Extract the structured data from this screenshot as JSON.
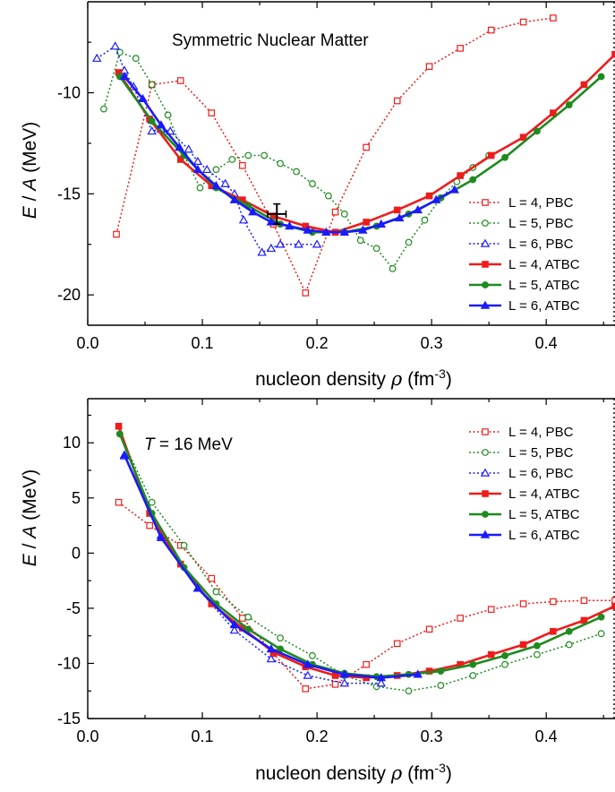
{
  "chart_data": [
    {
      "type": "line",
      "title": "",
      "annotation": "Symmetric Nuclear Matter",
      "xlabel": "nucleon density ρ (fm⁻³)",
      "ylabel": "E / A (MeV)",
      "xlim": [
        0.0,
        0.46
      ],
      "ylim": [
        -21.5,
        -5.5
      ],
      "xticks": [
        0.0,
        0.1,
        0.2,
        0.3,
        0.4
      ],
      "xtick_labels": [
        "0.0",
        "0.1",
        "0.2",
        "0.3",
        "0.4"
      ],
      "yticks": [
        -10,
        -15,
        -20
      ],
      "ytick_labels": [
        "-10",
        "-15",
        "-20"
      ],
      "grid": false,
      "legend_position": "bottom-right",
      "series": [
        {
          "name": "L = 4, PBC",
          "color": "#ee1c1c",
          "style": "dotted",
          "marker": "square-open",
          "x": [
            0.025,
            0.056,
            0.081,
            0.108,
            0.135,
            0.162,
            0.19,
            0.216,
            0.243,
            0.27,
            0.298,
            0.325,
            0.352,
            0.38,
            0.406
          ],
          "y": [
            -17.0,
            -9.6,
            -9.4,
            -11.0,
            -13.6,
            -16.5,
            -19.9,
            -15.9,
            -12.7,
            -10.4,
            -8.7,
            -7.8,
            -6.9,
            -6.5,
            -6.3
          ]
        },
        {
          "name": "L = 5, PBC",
          "color": "#1f8a1f",
          "style": "dotted",
          "marker": "circle-open",
          "x": [
            0.014,
            0.028,
            0.042,
            0.056,
            0.07,
            0.084,
            0.098,
            0.112,
            0.126,
            0.14,
            0.154,
            0.168,
            0.182,
            0.196,
            0.21,
            0.224,
            0.238,
            0.252,
            0.266,
            0.28,
            0.294,
            0.308,
            0.322,
            0.336,
            0.35
          ],
          "y": [
            -10.8,
            -8.0,
            -8.3,
            -9.6,
            -11.1,
            -13.1,
            -14.7,
            -13.8,
            -13.3,
            -13.1,
            -13.1,
            -13.5,
            -13.9,
            -14.5,
            -15.1,
            -16.0,
            -17.3,
            -17.7,
            -18.7,
            -17.4,
            -16.3,
            -15.2,
            -14.4,
            -13.7,
            -13.1
          ]
        },
        {
          "name": "L = 6, PBC",
          "color": "#1a1aff",
          "style": "dotted",
          "marker": "triangle-open",
          "x": [
            0.008,
            0.024,
            0.032,
            0.04,
            0.056,
            0.064,
            0.072,
            0.088,
            0.096,
            0.104,
            0.12,
            0.128,
            0.136,
            0.152,
            0.16,
            0.168,
            0.184,
            0.2
          ],
          "y": [
            -8.3,
            -7.7,
            -8.9,
            -9.7,
            -11.9,
            -11.8,
            -11.9,
            -12.8,
            -13.4,
            -13.8,
            -14.5,
            -15.0,
            -16.3,
            -17.9,
            -17.7,
            -17.5,
            -17.5,
            -17.5
          ]
        },
        {
          "name": "L = 4, ATBC",
          "color": "#ee1c1c",
          "style": "solid",
          "marker": "square-filled",
          "x": [
            0.027,
            0.054,
            0.081,
            0.108,
            0.135,
            0.162,
            0.19,
            0.216,
            0.243,
            0.27,
            0.298,
            0.325,
            0.352,
            0.38,
            0.406,
            0.433,
            0.46
          ],
          "y": [
            -9.0,
            -11.3,
            -13.3,
            -14.6,
            -15.3,
            -16.1,
            -16.6,
            -16.9,
            -16.4,
            -15.8,
            -15.1,
            -14.1,
            -13.1,
            -12.2,
            -11.0,
            -9.6,
            -8.1
          ]
        },
        {
          "name": "L = 5, ATBC",
          "color": "#1f8a1f",
          "style": "solid",
          "marker": "circle-filled",
          "x": [
            0.028,
            0.056,
            0.084,
            0.112,
            0.14,
            0.168,
            0.196,
            0.224,
            0.252,
            0.28,
            0.308,
            0.336,
            0.364,
            0.392,
            0.42,
            0.448
          ],
          "y": [
            -9.2,
            -11.4,
            -13.1,
            -14.7,
            -15.6,
            -16.5,
            -16.9,
            -16.9,
            -16.6,
            -16.0,
            -15.2,
            -14.3,
            -13.2,
            -11.9,
            -10.6,
            -9.2
          ]
        },
        {
          "name": "L = 6, ATBC",
          "color": "#1a1aff",
          "style": "solid",
          "marker": "triangle-filled",
          "x": [
            0.032,
            0.048,
            0.064,
            0.08,
            0.096,
            0.112,
            0.128,
            0.144,
            0.16,
            0.176,
            0.192,
            0.208,
            0.224,
            0.24,
            0.256,
            0.272,
            0.288,
            0.304,
            0.32
          ],
          "y": [
            -9.2,
            -10.3,
            -11.6,
            -12.7,
            -13.8,
            -14.6,
            -15.3,
            -15.9,
            -16.4,
            -16.6,
            -16.8,
            -16.9,
            -16.9,
            -16.8,
            -16.5,
            -16.2,
            -15.8,
            -15.3,
            -14.8
          ]
        }
      ],
      "error_point": {
        "x": 0.165,
        "y": -16.0,
        "xerr": 0.008,
        "yerr": 0.5
      }
    },
    {
      "type": "line",
      "title": "",
      "annotation_prefix": "T",
      "annotation": " = 16 MeV",
      "xlabel": "nucleon density ρ (fm⁻³)",
      "ylabel": "E / A (MeV)",
      "xlim": [
        0.0,
        0.46
      ],
      "ylim": [
        -15,
        14
      ],
      "xticks": [
        0.0,
        0.1,
        0.2,
        0.3,
        0.4
      ],
      "xtick_labels": [
        "0.0",
        "0.1",
        "0.2",
        "0.3",
        "0.4"
      ],
      "yticks": [
        10,
        5,
        0,
        -5,
        -10,
        -15
      ],
      "ytick_labels": [
        "10",
        "5",
        "0",
        "-5",
        "-10",
        "-15"
      ],
      "grid": false,
      "legend_position": "top-right",
      "series": [
        {
          "name": "L = 4, PBC",
          "color": "#ee1c1c",
          "style": "dotted",
          "marker": "square-open",
          "x": [
            0.027,
            0.054,
            0.081,
            0.108,
            0.135,
            0.162,
            0.19,
            0.216,
            0.243,
            0.27,
            0.298,
            0.325,
            0.352,
            0.38,
            0.406,
            0.433,
            0.46
          ],
          "y": [
            4.6,
            2.5,
            0.7,
            -2.3,
            -5.9,
            -9.1,
            -12.3,
            -11.9,
            -10.1,
            -8.2,
            -6.9,
            -5.9,
            -5.1,
            -4.6,
            -4.4,
            -4.3,
            -4.3
          ]
        },
        {
          "name": "L = 5, PBC",
          "color": "#1f8a1f",
          "style": "dotted",
          "marker": "circle-open",
          "x": [
            0.028,
            0.056,
            0.084,
            0.112,
            0.14,
            0.168,
            0.196,
            0.224,
            0.252,
            0.28,
            0.308,
            0.336,
            0.364,
            0.392,
            0.42,
            0.448
          ],
          "y": [
            10.8,
            4.6,
            0.7,
            -3.5,
            -5.8,
            -7.7,
            -9.3,
            -11.1,
            -12.1,
            -12.5,
            -12.0,
            -11.1,
            -10.1,
            -9.2,
            -8.3,
            -7.3
          ]
        },
        {
          "name": "L = 6, PBC",
          "color": "#1a1aff",
          "style": "dotted",
          "marker": "triangle-open",
          "x": [
            0.032,
            0.064,
            0.096,
            0.128,
            0.16,
            0.192,
            0.224,
            0.256
          ],
          "y": [
            8.8,
            1.6,
            -3.2,
            -7.0,
            -9.6,
            -11.1,
            -11.8,
            -11.8
          ]
        },
        {
          "name": "L = 4, ATBC",
          "color": "#ee1c1c",
          "style": "solid",
          "marker": "square-filled",
          "x": [
            0.027,
            0.054,
            0.081,
            0.108,
            0.135,
            0.162,
            0.19,
            0.216,
            0.243,
            0.27,
            0.298,
            0.325,
            0.352,
            0.38,
            0.406,
            0.433,
            0.46
          ],
          "y": [
            11.5,
            3.6,
            -1.0,
            -4.6,
            -6.8,
            -9.0,
            -10.3,
            -11.1,
            -11.3,
            -11.1,
            -10.7,
            -10.1,
            -9.2,
            -8.3,
            -7.1,
            -6.1,
            -4.8
          ]
        },
        {
          "name": "L = 5, ATBC",
          "color": "#1f8a1f",
          "style": "solid",
          "marker": "circle-filled",
          "x": [
            0.028,
            0.056,
            0.084,
            0.112,
            0.14,
            0.168,
            0.196,
            0.224,
            0.252,
            0.28,
            0.308,
            0.336,
            0.364,
            0.392,
            0.42,
            0.448
          ],
          "y": [
            10.8,
            3.6,
            -1.3,
            -4.6,
            -6.9,
            -8.7,
            -10.1,
            -10.9,
            -11.2,
            -11.0,
            -10.7,
            -10.1,
            -9.3,
            -8.4,
            -7.1,
            -5.8
          ]
        },
        {
          "name": "L = 6, ATBC",
          "color": "#1a1aff",
          "style": "solid",
          "marker": "triangle-filled",
          "x": [
            0.032,
            0.064,
            0.096,
            0.128,
            0.16,
            0.192,
            0.224,
            0.256,
            0.288
          ],
          "y": [
            8.9,
            1.4,
            -3.2,
            -6.5,
            -8.7,
            -10.1,
            -11.0,
            -11.3,
            -11.0
          ]
        }
      ]
    }
  ]
}
